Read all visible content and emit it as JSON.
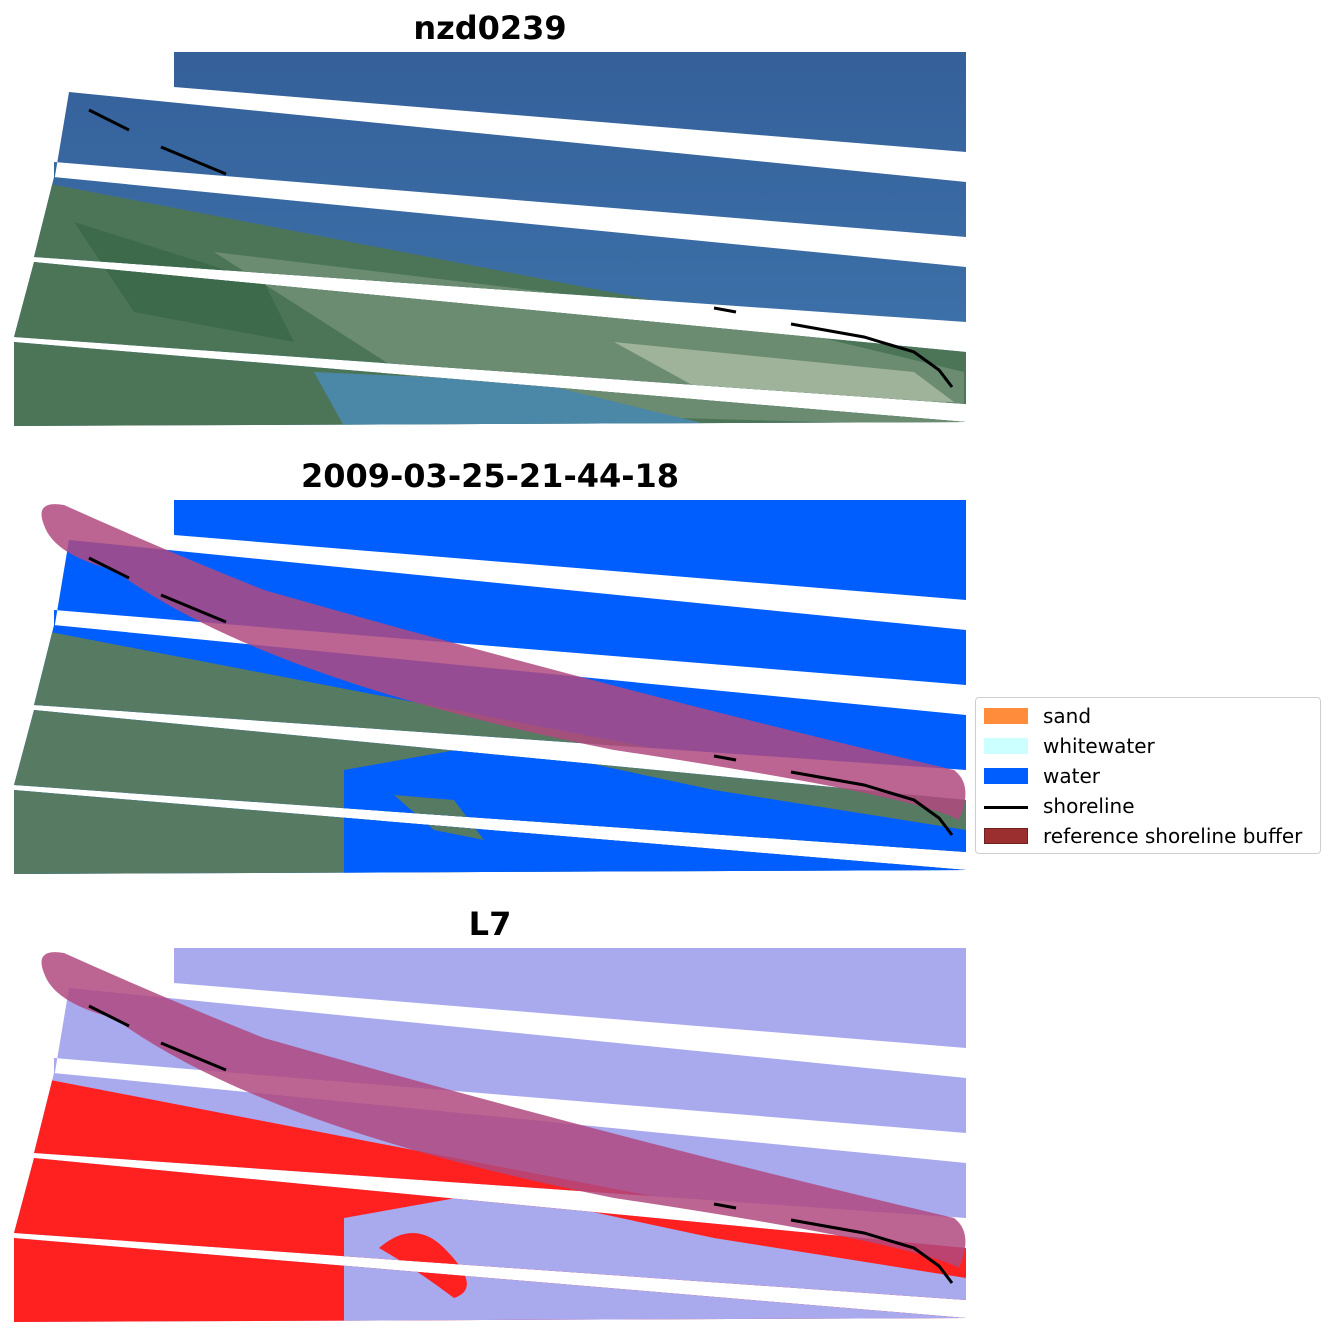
{
  "panels": [
    {
      "title": "nzd0239"
    },
    {
      "title": "2009-03-25-21-44-18"
    },
    {
      "title": "L7"
    }
  ],
  "legend": {
    "items": [
      {
        "label": "sand",
        "color": "#ff8c3a",
        "kind": "patch"
      },
      {
        "label": "whitewater",
        "color": "#ccffff",
        "kind": "patch"
      },
      {
        "label": "water",
        "color": "#005eff",
        "kind": "patch"
      },
      {
        "label": "shoreline",
        "color": "#000000",
        "kind": "line"
      },
      {
        "label": "reference shoreline buffer",
        "color": "#9b2f2f",
        "kind": "patch"
      }
    ]
  },
  "colors": {
    "sea": "#3e6fa4",
    "land": "#4f7a58",
    "water_class": "#005eff",
    "buffer": "#b0497f",
    "index_water": "#a9a9ee",
    "index_land": "#ff2020"
  }
}
